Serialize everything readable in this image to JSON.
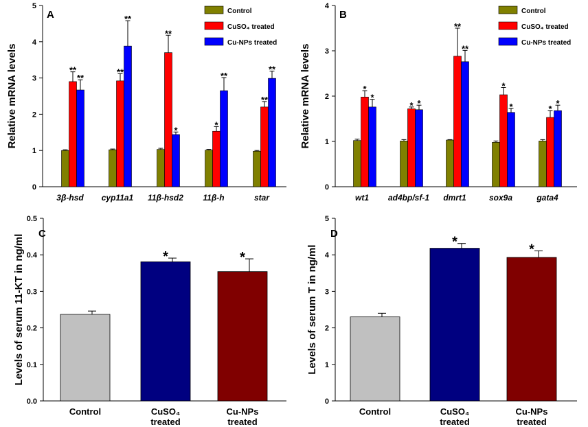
{
  "chart_data": [
    {
      "panel": "A",
      "type": "bar",
      "ylabel": "Relative mRNA levels",
      "ylim": [
        0,
        5
      ],
      "yticks": [
        "0",
        "1",
        "2",
        "3",
        "4",
        "5"
      ],
      "categories": [
        "3β-hsd",
        "cyp11a1",
        "11β-hsd2",
        "11β-h",
        "star"
      ],
      "legend_position": "top-right",
      "series": [
        {
          "name": "Control",
          "color": "#808000",
          "values": [
            1.0,
            1.02,
            1.03,
            1.01,
            0.98
          ],
          "errors": [
            0.02,
            0.02,
            0.03,
            0.02,
            0.02
          ],
          "stars": [
            "",
            "",
            "",
            "",
            ""
          ]
        },
        {
          "name": "CuSO₄ treated",
          "color": "#ff0000",
          "values": [
            2.9,
            2.92,
            3.7,
            1.53,
            2.2
          ],
          "errors": [
            0.27,
            0.2,
            0.48,
            0.13,
            0.15
          ],
          "stars": [
            "**",
            "**",
            "**",
            "*",
            "**"
          ]
        },
        {
          "name": "Cu-NPs treated",
          "color": "#0000ff",
          "values": [
            2.67,
            3.88,
            1.44,
            2.65,
            2.99
          ],
          "errors": [
            0.28,
            0.7,
            0.07,
            0.36,
            0.2
          ],
          "stars": [
            "**",
            "**",
            "*",
            "**",
            "**"
          ]
        }
      ]
    },
    {
      "panel": "B",
      "type": "bar",
      "ylabel": "Relative mRNA levels",
      "ylim": [
        0,
        4
      ],
      "yticks": [
        "0",
        "1",
        "2",
        "3",
        "4"
      ],
      "categories": [
        "wt1",
        "ad4bp/sf-1",
        "dmrt1",
        "sox9a",
        "gata4"
      ],
      "legend_position": "top-right",
      "series": [
        {
          "name": "Control",
          "color": "#808000",
          "values": [
            1.02,
            1.01,
            1.03,
            0.98,
            1.01
          ],
          "errors": [
            0.03,
            0.03,
            0.01,
            0.03,
            0.03
          ],
          "stars": [
            "",
            "",
            "",
            "",
            ""
          ]
        },
        {
          "name": "CuSO₄ treated",
          "color": "#ff0000",
          "values": [
            1.98,
            1.72,
            2.88,
            2.03,
            1.53
          ],
          "errors": [
            0.14,
            0.04,
            0.62,
            0.16,
            0.15
          ],
          "stars": [
            "*",
            "*",
            "**",
            "*",
            "*"
          ]
        },
        {
          "name": "Cu-NPs treated",
          "color": "#0000ff",
          "values": [
            1.76,
            1.7,
            2.76,
            1.64,
            1.68
          ],
          "errors": [
            0.17,
            0.1,
            0.25,
            0.09,
            0.12
          ],
          "stars": [
            "*",
            "*",
            "**",
            "*",
            "*"
          ]
        }
      ]
    },
    {
      "panel": "C",
      "type": "bar",
      "ylabel": "Levels of serum 11-KT in ng/ml",
      "ylim": [
        0,
        0.5
      ],
      "yticks": [
        "0.0",
        "0.1",
        "0.2",
        "0.3",
        "0.4",
        "0.5"
      ],
      "categories": [
        {
          "line1": "Control",
          "line2": ""
        },
        {
          "line1": "CuSO₄",
          "line2": "treated"
        },
        {
          "line1": "Cu-NPs",
          "line2": "treated"
        }
      ],
      "colors": [
        "#c0c0c0",
        "#000080",
        "#800000"
      ],
      "values": [
        0.237,
        0.381,
        0.354
      ],
      "errors": [
        0.009,
        0.01,
        0.035
      ],
      "stars": [
        "",
        "*",
        "*"
      ]
    },
    {
      "panel": "D",
      "type": "bar",
      "ylabel": "Levels of serum T in ng/ml",
      "ylim": [
        0,
        5
      ],
      "yticks": [
        "0",
        "1",
        "2",
        "3",
        "4",
        "5"
      ],
      "categories": [
        {
          "line1": "Control",
          "line2": ""
        },
        {
          "line1": "CuSO₄",
          "line2": "treated"
        },
        {
          "line1": "Cu-NPs",
          "line2": "treated"
        }
      ],
      "colors": [
        "#c0c0c0",
        "#000080",
        "#800000"
      ],
      "values": [
        2.3,
        4.18,
        3.93
      ],
      "errors": [
        0.1,
        0.13,
        0.18
      ],
      "stars": [
        "",
        "*",
        "*"
      ]
    }
  ]
}
